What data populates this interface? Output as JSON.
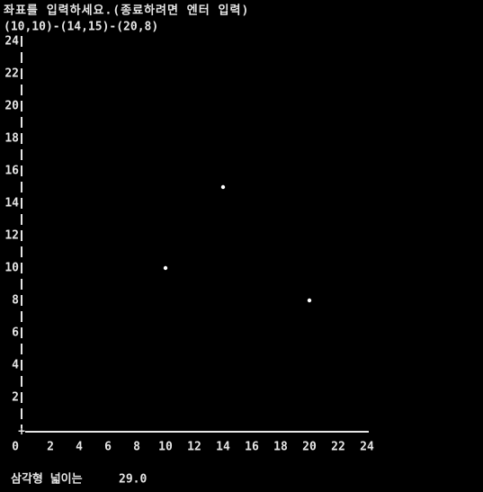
{
  "prompt": "좌표를 입력하세요.(종료하려면 엔터 입력)",
  "input": "(10,10)-(14,15)-(20,8)",
  "chart_data": {
    "type": "scatter",
    "x": [
      10,
      14,
      20
    ],
    "values": [
      10,
      15,
      8
    ],
    "xlim": [
      0,
      24
    ],
    "ylim": [
      0,
      24
    ],
    "xticks": [
      0,
      2,
      4,
      6,
      8,
      10,
      12,
      14,
      16,
      18,
      20,
      22,
      24
    ],
    "yticks": [
      2,
      4,
      6,
      8,
      10,
      12,
      14,
      16,
      18,
      20,
      22,
      24
    ],
    "color": "#ffffff",
    "grid": false
  },
  "result": {
    "label": "삼각형 넓이는",
    "value": "29.0"
  }
}
